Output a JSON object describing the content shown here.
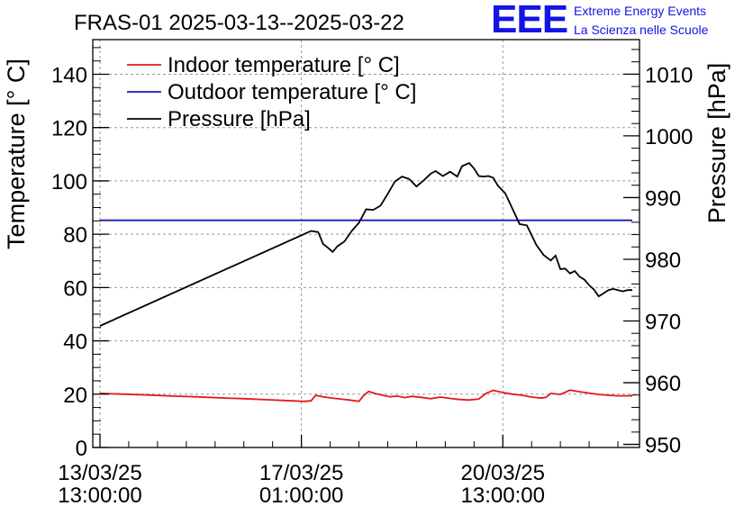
{
  "chart_data": {
    "type": "line",
    "title": "FRAS-01 2025-03-13--2025-03-22",
    "ylabel": "Temperature [° C]",
    "y2label": "Pressure [hPa]",
    "ylim": [
      0,
      153
    ],
    "y2lim": [
      949.5,
      1015.6
    ],
    "yticks": [
      0,
      20,
      40,
      60,
      80,
      100,
      120,
      140
    ],
    "y2ticks": [
      950,
      960,
      970,
      980,
      990,
      1000,
      1010
    ],
    "xlim_hours": [
      -3,
      225
    ],
    "xticks": [
      {
        "hours": 0,
        "date": "13/03/25",
        "time": "13:00:00"
      },
      {
        "hours": 84,
        "date": "17/03/25",
        "time": "01:00:00"
      },
      {
        "hours": 168,
        "date": "20/03/25",
        "time": "13:00:00"
      }
    ],
    "grid": true,
    "legend_position": "top-left",
    "series": [
      {
        "name": "Indoor temperature [° C]",
        "axis": "left",
        "color": "#e31a1a",
        "x_hours": [
          0,
          10,
          20,
          30,
          40,
          50,
          60,
          70,
          80,
          85,
          88,
          90,
          93,
          96,
          100,
          104,
          108,
          110,
          112,
          115,
          118,
          121,
          124,
          127,
          130,
          134,
          138,
          142,
          146,
          150,
          154,
          158,
          161,
          164,
          166,
          168,
          172,
          176,
          180,
          184,
          186,
          188,
          192,
          196,
          200,
          204,
          208,
          212,
          216,
          222
        ],
        "values": [
          20.3,
          20.0,
          19.7,
          19.3,
          19.0,
          18.6,
          18.3,
          17.9,
          17.5,
          17.3,
          17.5,
          19.6,
          19.0,
          18.6,
          18.2,
          17.8,
          17.3,
          19.5,
          21.0,
          20.2,
          19.6,
          19.0,
          19.3,
          18.7,
          19.2,
          18.8,
          18.3,
          18.9,
          18.4,
          18.0,
          17.8,
          18.2,
          20.3,
          21.4,
          21.0,
          20.6,
          20.0,
          19.6,
          18.9,
          18.5,
          18.8,
          20.3,
          19.9,
          21.5,
          20.9,
          20.4,
          19.9,
          19.6,
          19.4,
          19.4
        ]
      },
      {
        "name": "Outdoor temperature [° C]",
        "axis": "left",
        "color": "#1a1ab8",
        "x_hours": [
          0,
          222
        ],
        "values": [
          85.2,
          85.2
        ]
      },
      {
        "name": "Pressure [hPa]",
        "axis": "right",
        "color": "#000000",
        "x_hours": [
          0,
          88,
          91,
          93,
          95,
          97,
          99,
          102,
          105,
          108,
          111,
          114,
          117,
          120,
          123,
          126,
          129,
          132,
          135,
          138,
          140,
          143,
          146,
          149,
          151,
          154,
          156,
          158,
          160,
          162,
          164,
          166,
          169,
          172,
          175,
          178,
          180,
          182,
          185,
          188,
          190,
          192,
          194,
          196,
          198,
          200,
          202,
          204,
          206,
          208,
          210,
          212,
          214,
          216,
          218,
          220,
          222
        ],
        "values": [
          969.2,
          984.6,
          984.4,
          982.5,
          981.9,
          981.2,
          982.1,
          982.9,
          984.6,
          985.9,
          988.1,
          988.0,
          988.7,
          990.6,
          992.6,
          993.4,
          993.0,
          991.8,
          992.8,
          993.9,
          994.3,
          993.5,
          994.2,
          993.4,
          995.1,
          995.6,
          994.7,
          993.5,
          993.4,
          993.5,
          993.2,
          991.9,
          990.7,
          988.2,
          985.7,
          985.5,
          983.9,
          982.3,
          980.7,
          979.8,
          980.6,
          978.4,
          978.5,
          977.7,
          978.1,
          977.2,
          976.7,
          975.8,
          975.1,
          974.0,
          974.5,
          975.0,
          975.2,
          975.0,
          974.8,
          975.0,
          975.0
        ]
      }
    ]
  },
  "logo": {
    "mark": "EEE",
    "line1": "Extreme Energy Events",
    "line2": "La Scienza nelle Scuole"
  }
}
